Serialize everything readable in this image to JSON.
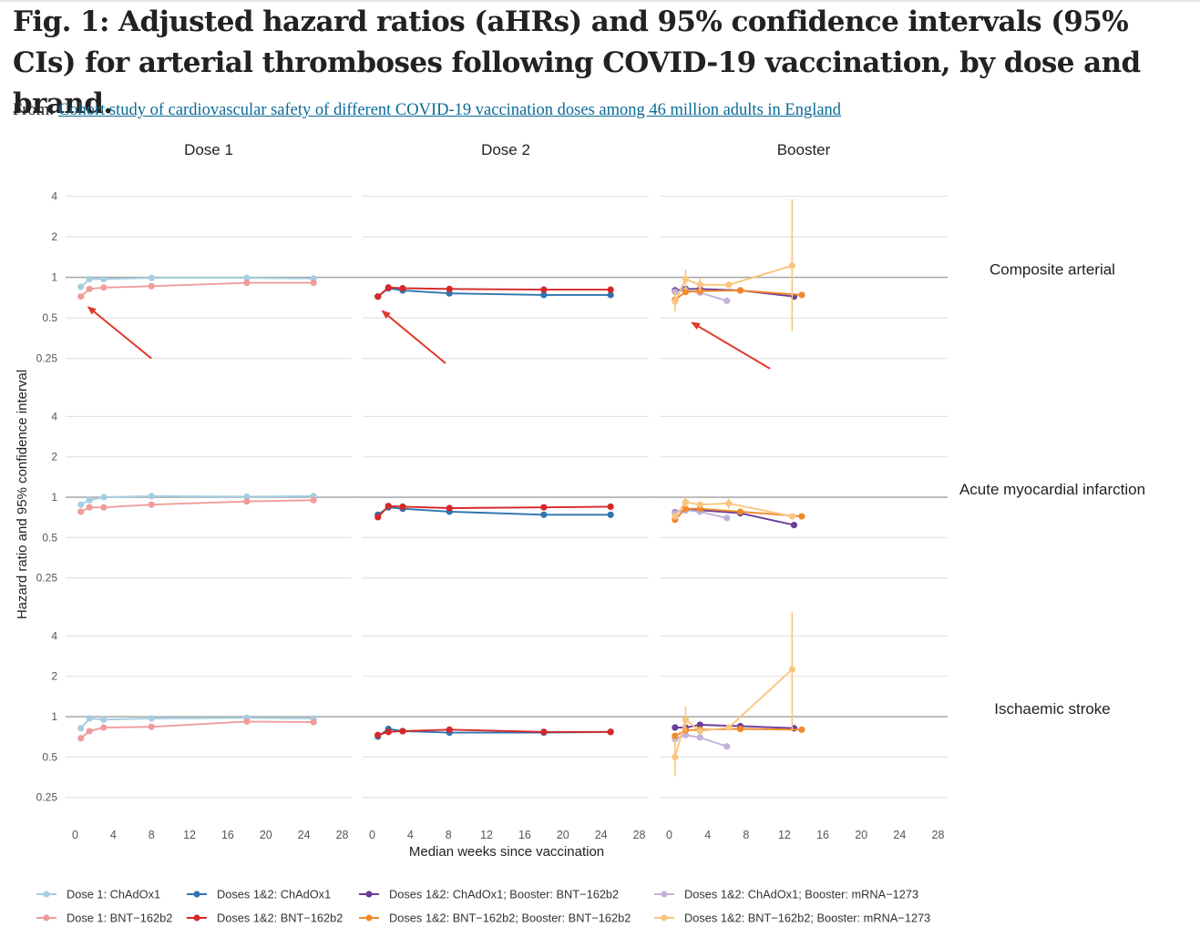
{
  "header": {
    "title": "Fig. 1: Adjusted hazard ratios (aHRs) and 95% confidence intervals (95% CIs) for arterial thromboses following COVID-19 vaccination, by dose and brand.",
    "from_label": "From:",
    "from_link": "Cohort study of cardiovascular safety of different COVID-19 vaccination doses among 46 million adults in England"
  },
  "chart_data": {
    "type": "line",
    "xlabel": "Median weeks since vaccination",
    "ylabel": "Hazard ratio and 95% confidence interval",
    "y_scale": "log",
    "ylim": [
      0.2,
      5.5
    ],
    "y_ticks": [
      0.25,
      0.5,
      1,
      2,
      4
    ],
    "y_tick_labels": [
      "0.25",
      "0.5",
      "1",
      "2",
      "4"
    ],
    "xlim": [
      -1,
      29
    ],
    "x_ticks": [
      0,
      4,
      8,
      12,
      16,
      20,
      24,
      28
    ],
    "x_tick_labels": [
      "0",
      "4",
      "8",
      "12",
      "16",
      "20",
      "24",
      "28"
    ],
    "reference_line": 1,
    "grid": true,
    "legend_position": "bottom",
    "columns": [
      "Dose 1",
      "Dose 2",
      "Booster"
    ],
    "rows": [
      "Composite arterial",
      "Acute myocardial infarction",
      "Ischaemic stroke"
    ],
    "annotations": [
      {
        "type": "arrow",
        "panel": "Composite arterial / Dose 1",
        "from": [
          8,
          0.25
        ],
        "to": [
          1.4,
          0.6
        ]
      },
      {
        "type": "arrow",
        "panel": "Composite arterial / Dose 2",
        "from": [
          7.7,
          0.23
        ],
        "to": [
          1.1,
          0.56
        ]
      },
      {
        "type": "arrow",
        "panel": "Composite arterial / Booster",
        "from": [
          10.5,
          0.21
        ],
        "to": [
          2.4,
          0.46
        ]
      }
    ],
    "series": [
      {
        "name": "Dose 1: ChAdOx1",
        "color": "#a6cee3",
        "column": "Dose 1",
        "x": [
          0.6,
          1.5,
          3,
          8,
          18,
          25
        ],
        "values": {
          "Composite arterial": [
            0.85,
            0.97,
            0.97,
            0.99,
            0.99,
            0.98
          ],
          "Acute myocardial infarction": [
            0.88,
            0.95,
            1.0,
            1.02,
            1.01,
            1.02
          ],
          "Ischaemic stroke": [
            0.82,
            0.97,
            0.95,
            0.97,
            0.98,
            0.97
          ]
        }
      },
      {
        "name": "Dose 1: BNT−162b2",
        "color": "#f09c9c",
        "column": "Dose 1",
        "x": [
          0.6,
          1.5,
          3,
          8,
          18,
          25
        ],
        "values": {
          "Composite arterial": [
            0.72,
            0.82,
            0.84,
            0.86,
            0.91,
            0.91
          ],
          "Acute myocardial infarction": [
            0.78,
            0.84,
            0.84,
            0.88,
            0.93,
            0.95
          ],
          "Ischaemic stroke": [
            0.69,
            0.78,
            0.83,
            0.84,
            0.92,
            0.91
          ]
        }
      },
      {
        "name": "Doses 1&2: ChAdOx1",
        "color": "#2f74b0",
        "column": "Dose 2",
        "x": [
          0.6,
          1.7,
          3.2,
          8.1,
          18,
          25
        ],
        "values": {
          "Composite arterial": [
            0.72,
            0.83,
            0.8,
            0.76,
            0.74,
            0.74
          ],
          "Acute myocardial infarction": [
            0.74,
            0.84,
            0.82,
            0.78,
            0.74,
            0.74
          ],
          "Ischaemic stroke": [
            0.71,
            0.81,
            0.78,
            0.76,
            0.76,
            0.77
          ]
        }
      },
      {
        "name": "Doses 1&2: BNT−162b2",
        "color": "#d62728",
        "column": "Dose 2",
        "x": [
          0.6,
          1.7,
          3.2,
          8.1,
          18,
          25
        ],
        "values": {
          "Composite arterial": [
            0.72,
            0.84,
            0.83,
            0.82,
            0.81,
            0.81
          ],
          "Acute myocardial infarction": [
            0.71,
            0.86,
            0.85,
            0.83,
            0.84,
            0.85
          ],
          "Ischaemic stroke": [
            0.73,
            0.77,
            0.78,
            0.8,
            0.77,
            0.77
          ]
        }
      },
      {
        "name": "Doses 1&2: ChAdOx1; Booster: BNT−162b2",
        "color": "#6a3d9a",
        "column": "Booster",
        "x": [
          0.6,
          1.7,
          3.2,
          7.4,
          13
        ],
        "values": {
          "Composite arterial": [
            0.8,
            0.82,
            0.82,
            0.8,
            0.72
          ],
          "Acute myocardial infarction": [
            0.77,
            0.8,
            0.8,
            0.76,
            0.62
          ],
          "Ischaemic stroke": [
            0.83,
            0.83,
            0.87,
            0.85,
            0.82
          ]
        }
      },
      {
        "name": "Doses 1&2: ChAdOx1; Booster: mRNA−1273",
        "color": "#c2b2d8",
        "column": "Booster",
        "x": [
          0.6,
          1.7,
          3.2,
          6
        ],
        "values": {
          "Composite arterial": [
            0.78,
            0.8,
            0.77,
            0.67
          ],
          "Acute myocardial infarction": [
            0.76,
            0.8,
            0.78,
            0.7
          ],
          "Ischaemic stroke": [
            0.68,
            0.73,
            0.7,
            0.6
          ]
        }
      },
      {
        "name": "Doses 1&2: BNT−162b2; Booster: BNT−162b2",
        "color": "#f0892b",
        "column": "Booster",
        "x": [
          0.6,
          1.7,
          3.2,
          7.4,
          13.8
        ],
        "values": {
          "Composite arterial": [
            0.68,
            0.78,
            0.79,
            0.8,
            0.74
          ],
          "Acute myocardial infarction": [
            0.68,
            0.82,
            0.82,
            0.78,
            0.72
          ],
          "Ischaemic stroke": [
            0.72,
            0.79,
            0.8,
            0.81,
            0.8
          ]
        }
      },
      {
        "name": "Doses 1&2: BNT−162b2; Booster: mRNA−1273",
        "color": "#f9c57f",
        "column": "Booster",
        "x": [
          0.6,
          1.7,
          3.2,
          6.2,
          12.8
        ],
        "values": {
          "Composite arterial": [
            0.66,
            0.97,
            0.88,
            0.88,
            1.22
          ],
          "Acute myocardial infarction": [
            0.72,
            0.92,
            0.88,
            0.9,
            0.72
          ],
          "Ischaemic stroke": [
            0.5,
            0.95,
            0.78,
            0.83,
            2.25
          ]
        },
        "ci": {
          "Composite arterial": [
            [
              0.56,
              0.78
            ],
            [
              0.8,
              1.14
            ],
            [
              0.78,
              0.98
            ],
            null,
            [
              0.4,
              3.8
            ]
          ],
          "Acute myocardial infarction": [
            null,
            [
              0.84,
              1.0
            ],
            null,
            [
              0.82,
              0.98
            ],
            null
          ],
          "Ischaemic stroke": [
            [
              0.36,
              0.68
            ],
            [
              0.76,
              1.2
            ],
            null,
            null,
            [
              0.8,
              6.0
            ]
          ]
        }
      }
    ]
  }
}
